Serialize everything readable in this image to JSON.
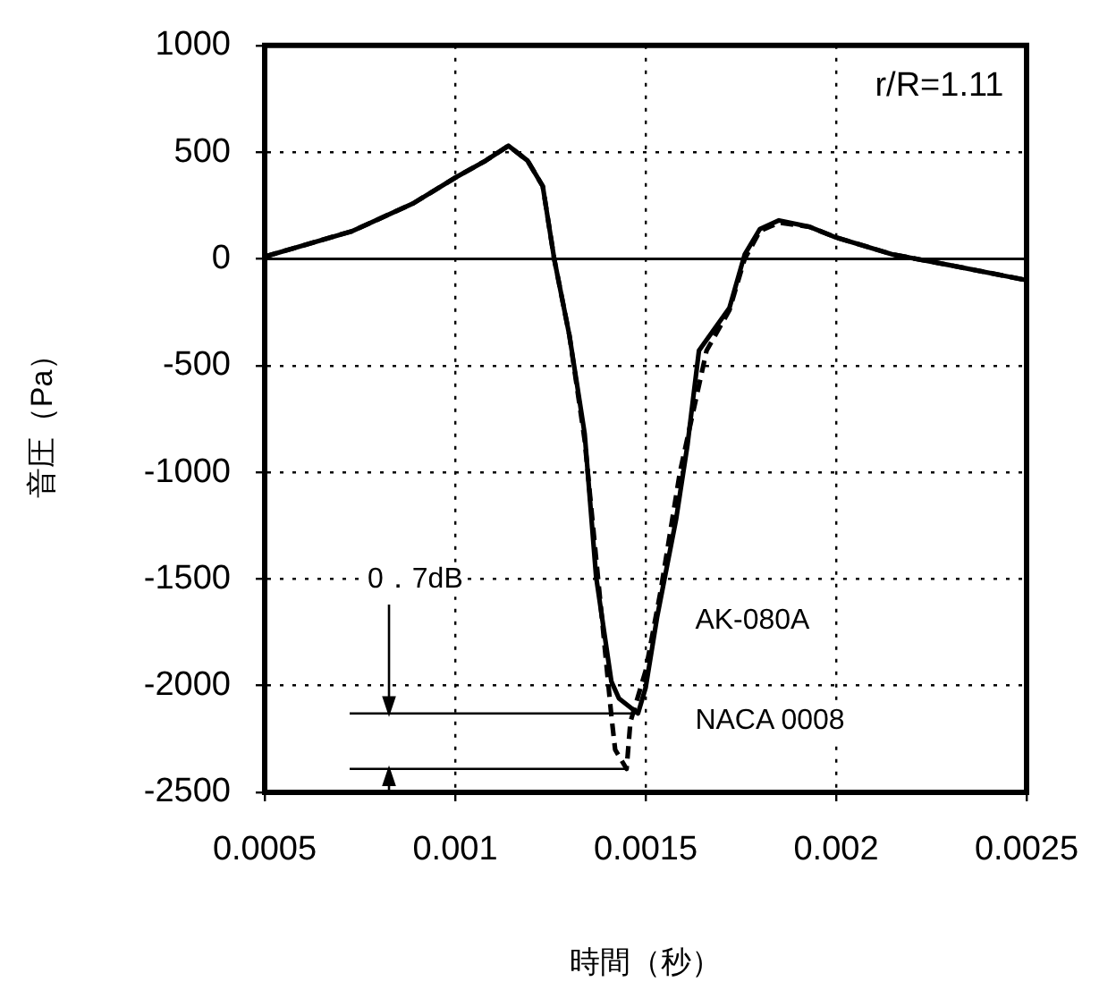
{
  "chart_data": {
    "type": "line",
    "xlabel": "時間（秒）",
    "ylabel": "音圧（Pa）",
    "xlim": [
      0.0005,
      0.0025
    ],
    "xticks": [
      0.0005,
      0.001,
      0.0015,
      0.002,
      0.0025
    ],
    "ylim": [
      -2500,
      1000
    ],
    "yticks": [
      1000,
      500,
      0,
      -500,
      -1000,
      -1500,
      -2000,
      -2500
    ],
    "grid": true,
    "marker": "none",
    "ref_lines": [
      {
        "axis": "y",
        "value": 0,
        "color": "#000000",
        "line_style": "solid"
      }
    ],
    "series": [
      {
        "name": "AK-080A",
        "color": "#000000",
        "line_style": "solid",
        "x": [
          0.0005,
          0.00073,
          0.00089,
          0.001,
          0.00108,
          0.00114,
          0.00119,
          0.00123,
          0.00126,
          0.0013,
          0.00134,
          0.00137,
          0.00141,
          0.00143,
          0.00148,
          0.0015,
          0.00153,
          0.00158,
          0.00161,
          0.00164,
          0.00172,
          0.00176,
          0.0018,
          0.00185,
          0.00193,
          0.002,
          0.00215,
          0.0023,
          0.0025
        ],
        "values": [
          10,
          130,
          260,
          380,
          460,
          530,
          460,
          340,
          0,
          -360,
          -820,
          -1490,
          -1980,
          -2060,
          -2130,
          -2010,
          -1680,
          -1220,
          -870,
          -430,
          -230,
          20,
          140,
          180,
          150,
          100,
          20,
          -30,
          -100
        ]
      },
      {
        "name": "NACA 0008",
        "color": "#000000",
        "line_style": "dashed",
        "x": [
          0.0005,
          0.00073,
          0.00089,
          0.001,
          0.00108,
          0.00114,
          0.00119,
          0.00123,
          0.00126,
          0.0013,
          0.00134,
          0.00141,
          0.00142,
          0.00145,
          0.00146,
          0.0015,
          0.00154,
          0.00159,
          0.00166,
          0.00172,
          0.00176,
          0.0018,
          0.00185,
          0.00193,
          0.002,
          0.00215,
          0.0023,
          0.0025
        ],
        "values": [
          10,
          130,
          260,
          380,
          460,
          530,
          460,
          340,
          0,
          -360,
          -850,
          -2140,
          -2300,
          -2390,
          -2170,
          -1930,
          -1550,
          -1000,
          -430,
          -240,
          0,
          130,
          170,
          150,
          100,
          20,
          -30,
          -100
        ]
      }
    ],
    "annotations": [
      "r/R=1.11",
      "0．7dB"
    ]
  }
}
